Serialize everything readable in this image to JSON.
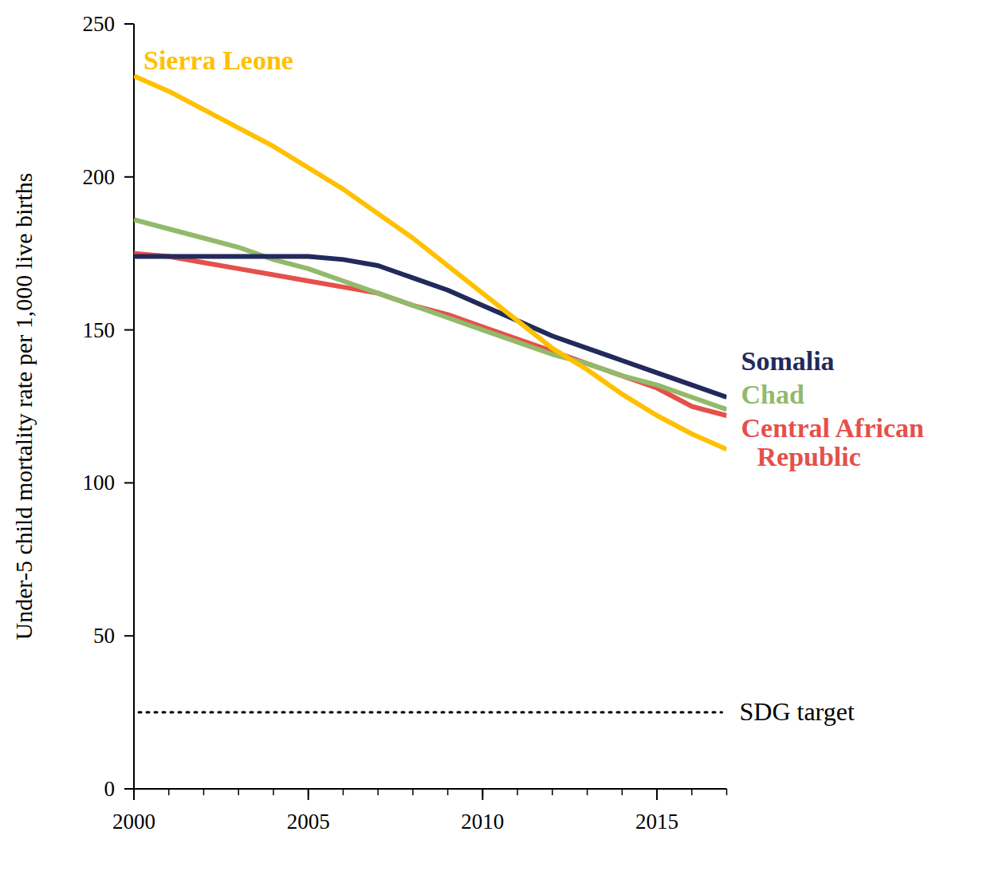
{
  "chart_data": {
    "type": "line",
    "y_label": "Under-5 child mortality rate per 1,000 live births",
    "x": [
      2000,
      2001,
      2002,
      2003,
      2004,
      2005,
      2006,
      2007,
      2008,
      2009,
      2010,
      2011,
      2012,
      2013,
      2014,
      2015,
      2016,
      2017
    ],
    "series": [
      {
        "name": "Sierra Leone",
        "color": "#ffc000",
        "values": [
          233,
          228,
          222,
          216,
          210,
          203,
          196,
          188,
          180,
          171,
          162,
          153,
          144,
          137,
          129,
          122,
          116,
          111
        ]
      },
      {
        "name": "Somalia",
        "color": "#222a5c",
        "values": [
          174,
          174,
          174,
          174,
          174,
          174,
          173,
          171,
          167,
          163,
          158,
          153,
          148,
          144,
          140,
          136,
          132,
          128
        ]
      },
      {
        "name": "Chad",
        "color": "#93b96a",
        "values": [
          186,
          183,
          180,
          177,
          173,
          170,
          166,
          162,
          158,
          154,
          150,
          146,
          142,
          139,
          135,
          132,
          128,
          124
        ]
      },
      {
        "name": "Central African Republic",
        "color": "#e5504a",
        "values": [
          175,
          174,
          172,
          170,
          168,
          166,
          164,
          162,
          158,
          155,
          151,
          147,
          143,
          139,
          135,
          131,
          125,
          122
        ]
      }
    ],
    "annotations": [
      {
        "text": "SDG target",
        "y": 25,
        "line_style": "dotted"
      }
    ],
    "xlim": [
      2000,
      2017
    ],
    "xticks": [
      2000,
      2005,
      2010,
      2015
    ],
    "ylim": [
      0,
      250
    ],
    "yticks": [
      0,
      50,
      100,
      150,
      200,
      250
    ],
    "grid": false
  }
}
